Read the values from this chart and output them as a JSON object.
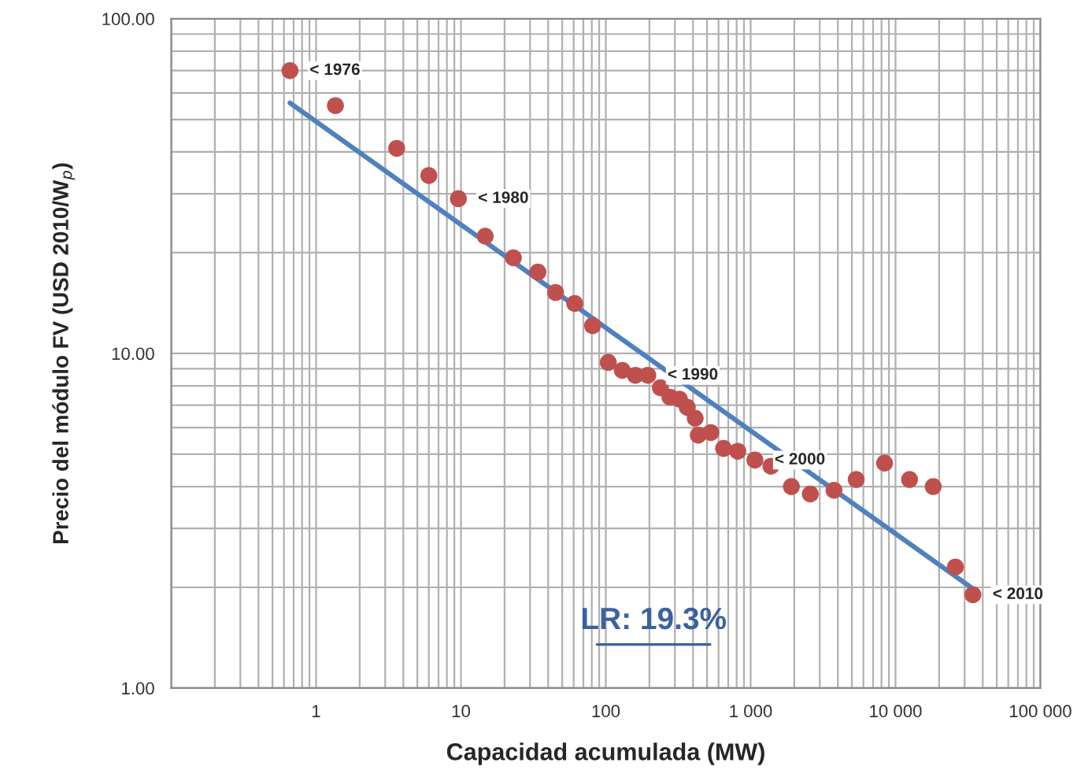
{
  "chart_data": {
    "type": "scatter",
    "xlabel": "Capacidad acumulada (MW)",
    "ylabel": "Precio del módulo FV (USD 2010/W$_{p}$)",
    "log": "xy",
    "grid": true,
    "xlim": [
      0.1,
      100000
    ],
    "xticks": [
      {
        "value": 0.1,
        "label": null
      },
      1,
      10,
      100,
      {
        "value": 1000,
        "label": "1 000"
      },
      {
        "value": 10000,
        "label": "10 000"
      },
      {
        "value": 100000,
        "label": "100 000"
      }
    ],
    "ylim": [
      1,
      100
    ],
    "yticks": [
      {
        "value": 1,
        "label": "1.00"
      },
      {
        "value": 10,
        "label": "10.00"
      },
      {
        "value": 100,
        "label": "100.00"
      }
    ],
    "series": [
      {
        "marker": "circle",
        "color": "#c0504d",
        "x": [
          0.66,
          1.36,
          3.6,
          6.0,
          9.6,
          14.7,
          23,
          34,
          45,
          61,
          81,
          104,
          130,
          160,
          195,
          238,
          277,
          322,
          365,
          414,
          435,
          531,
          650,
          815,
          1070,
          1380,
          1910,
          2580,
          3760,
          5350,
          8400,
          12500,
          18200,
          25900,
          34200
        ],
        "values": [
          70,
          55,
          41,
          34,
          29,
          22.4,
          19.3,
          17.5,
          15.2,
          14.1,
          12.1,
          9.4,
          8.9,
          8.6,
          8.6,
          7.9,
          7.4,
          7.3,
          6.9,
          6.4,
          5.7,
          5.8,
          5.2,
          5.1,
          4.8,
          4.6,
          4.0,
          3.8,
          3.9,
          4.2,
          4.7,
          4.2,
          4.0,
          2.3,
          1.9
        ]
      },
      {
        "type": "line",
        "marker": "none",
        "color": "#4f81bd",
        "x": [
          0.66,
          34200
        ],
        "values": [
          56,
          1.98
        ]
      }
    ],
    "annotations": [
      {
        "text": "< 1976",
        "x": 0.66,
        "y": 70
      },
      {
        "text": "< 1980",
        "x": 9.6,
        "y": 29
      },
      {
        "text": "< 1990",
        "x": 195,
        "y": 8.6
      },
      {
        "text": "< 2000",
        "x": 1070,
        "y": 4.8
      },
      {
        "text": "< 2010",
        "x": 34200,
        "y": 1.9
      },
      "LR: 19.3%"
    ]
  }
}
